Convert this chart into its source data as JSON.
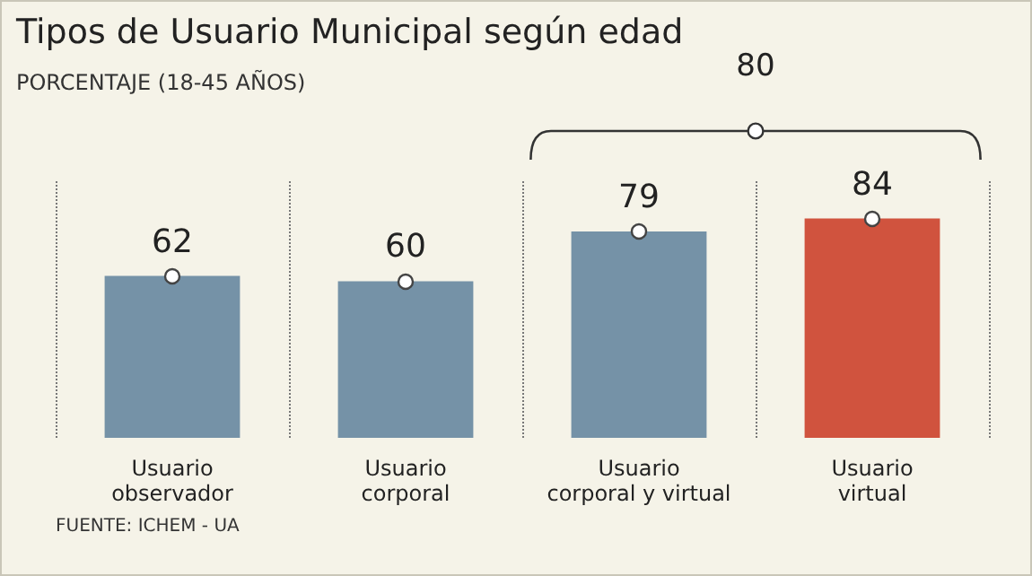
{
  "chart_data": {
    "type": "bar",
    "title": "Tipos de Usuario Municipal según edad",
    "subtitle": "PORCENTAJE (18-45 AÑOS)",
    "categories": [
      "Usuario\nobservador",
      "Usuario\ncorporal",
      "Usuario\ncorporal y virtual",
      "Usuario\nvirtual"
    ],
    "values": [
      62,
      60,
      79,
      84
    ],
    "colors": [
      "#7592a7",
      "#7592a7",
      "#7592a7",
      "#d0533e"
    ],
    "data_labels": true,
    "grid": "x",
    "annotations": [
      "80",
      "FUENTE: ICHEM - UA"
    ]
  }
}
